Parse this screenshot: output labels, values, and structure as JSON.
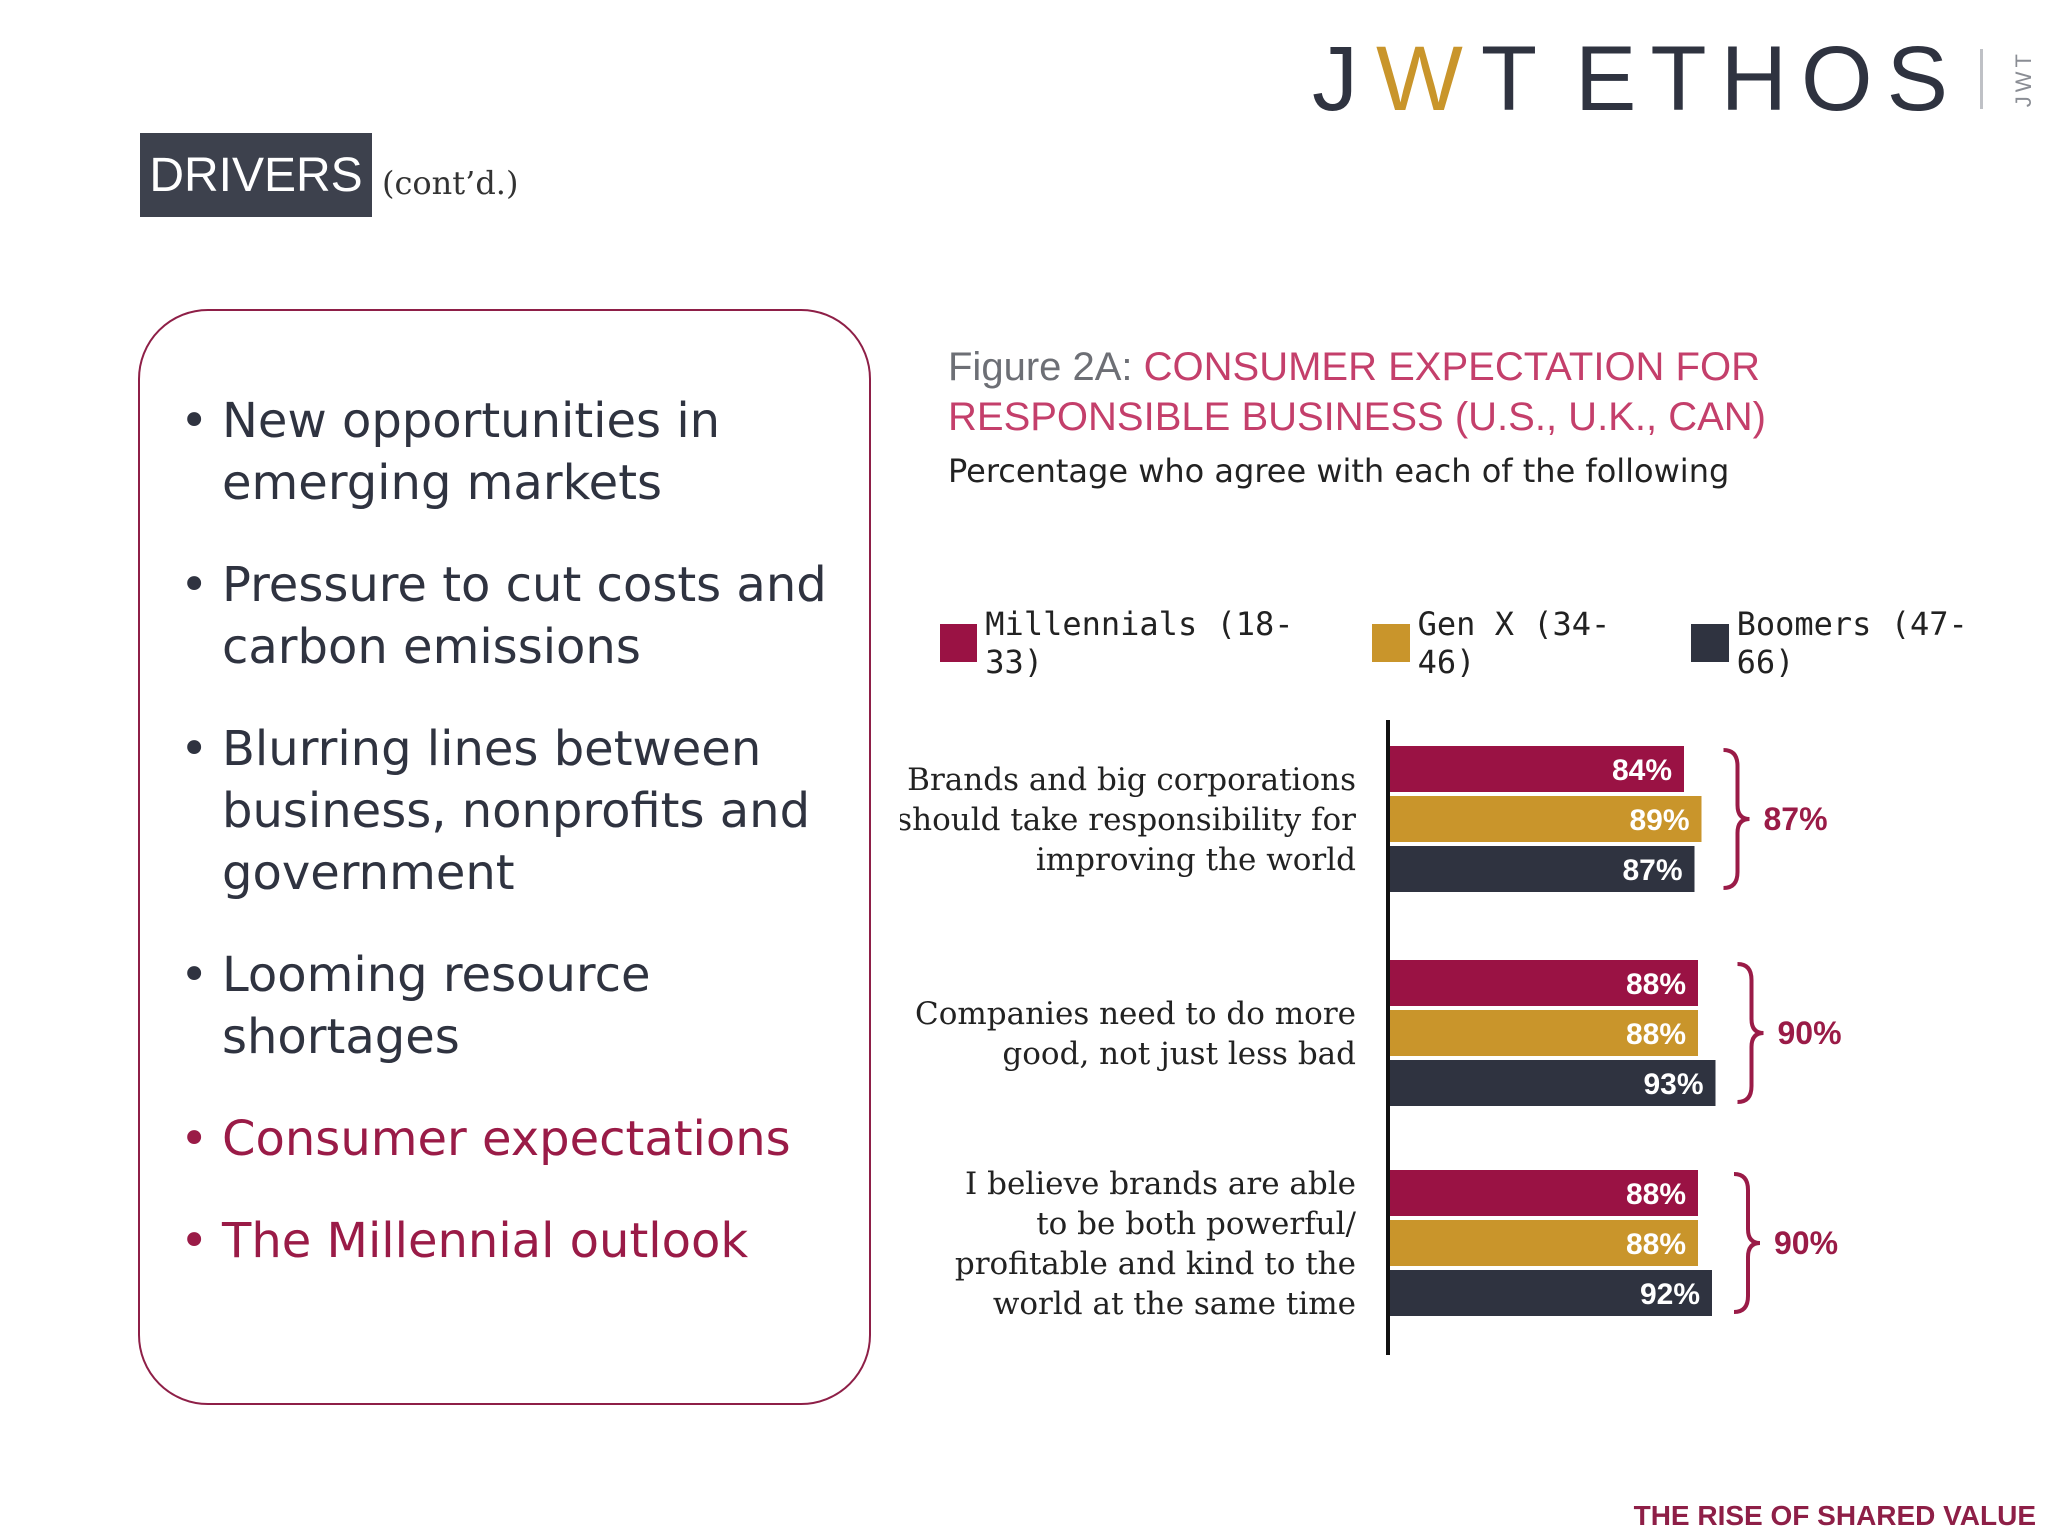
{
  "header": {
    "logo_jwt_j": "J",
    "logo_jwt_w": "W",
    "logo_jwt_t": "T",
    "logo_ethos": "ETHOS",
    "logo_mini": "JWT"
  },
  "section": {
    "badge": "DRIVERS",
    "suffix": "(cont’d.)"
  },
  "bullets": [
    {
      "text": "New opportunities in emerging markets",
      "highlight": false
    },
    {
      "text": "Pressure to cut costs and carbon emissions",
      "highlight": false
    },
    {
      "text": "Blurring lines between business, nonprofits and government",
      "highlight": false
    },
    {
      "text": "Looming resource shortages",
      "highlight": false
    },
    {
      "text": "Consumer expectations",
      "highlight": true
    },
    {
      "text": "The Millennial outlook",
      "highlight": true
    }
  ],
  "figure": {
    "label": "Figure 2A: ",
    "title_line1": "CONSUMER EXPECTATION FOR",
    "title_line2": "RESPONSIBLE BUSINESS (U.S., U.K., CAN)",
    "subtitle": "Percentage who agree with each of the following"
  },
  "colors": {
    "millennials": "#9a1244",
    "genx": "#c9952b",
    "boomers": "#2f3340",
    "accent": "#9a1b47"
  },
  "chart_data": {
    "type": "bar",
    "orientation": "horizontal",
    "title": "CONSUMER EXPECTATION FOR RESPONSIBLE BUSINESS (U.S., U.K., CAN)",
    "subtitle": "Percentage who agree with each of the following",
    "legend_position": "top",
    "xlim": [
      0,
      100
    ],
    "categories": [
      [
        "Brands and big corporations",
        "should take responsibility for",
        "improving the world"
      ],
      [
        "Companies need to do more",
        "good, not just less bad"
      ],
      [
        "I believe brands are able",
        "to be both powerful/",
        "profitable and kind to the",
        "world at the same time"
      ]
    ],
    "series": [
      {
        "name": "Millennials (18-33)",
        "values": [
          84,
          88,
          88
        ]
      },
      {
        "name": "Gen X (34-46)",
        "values": [
          89,
          88,
          88
        ]
      },
      {
        "name": "Boomers (47-66)",
        "values": [
          87,
          93,
          92
        ]
      }
    ],
    "totals": [
      87,
      90,
      90
    ]
  },
  "footer": "THE RISE OF SHARED VALUE"
}
